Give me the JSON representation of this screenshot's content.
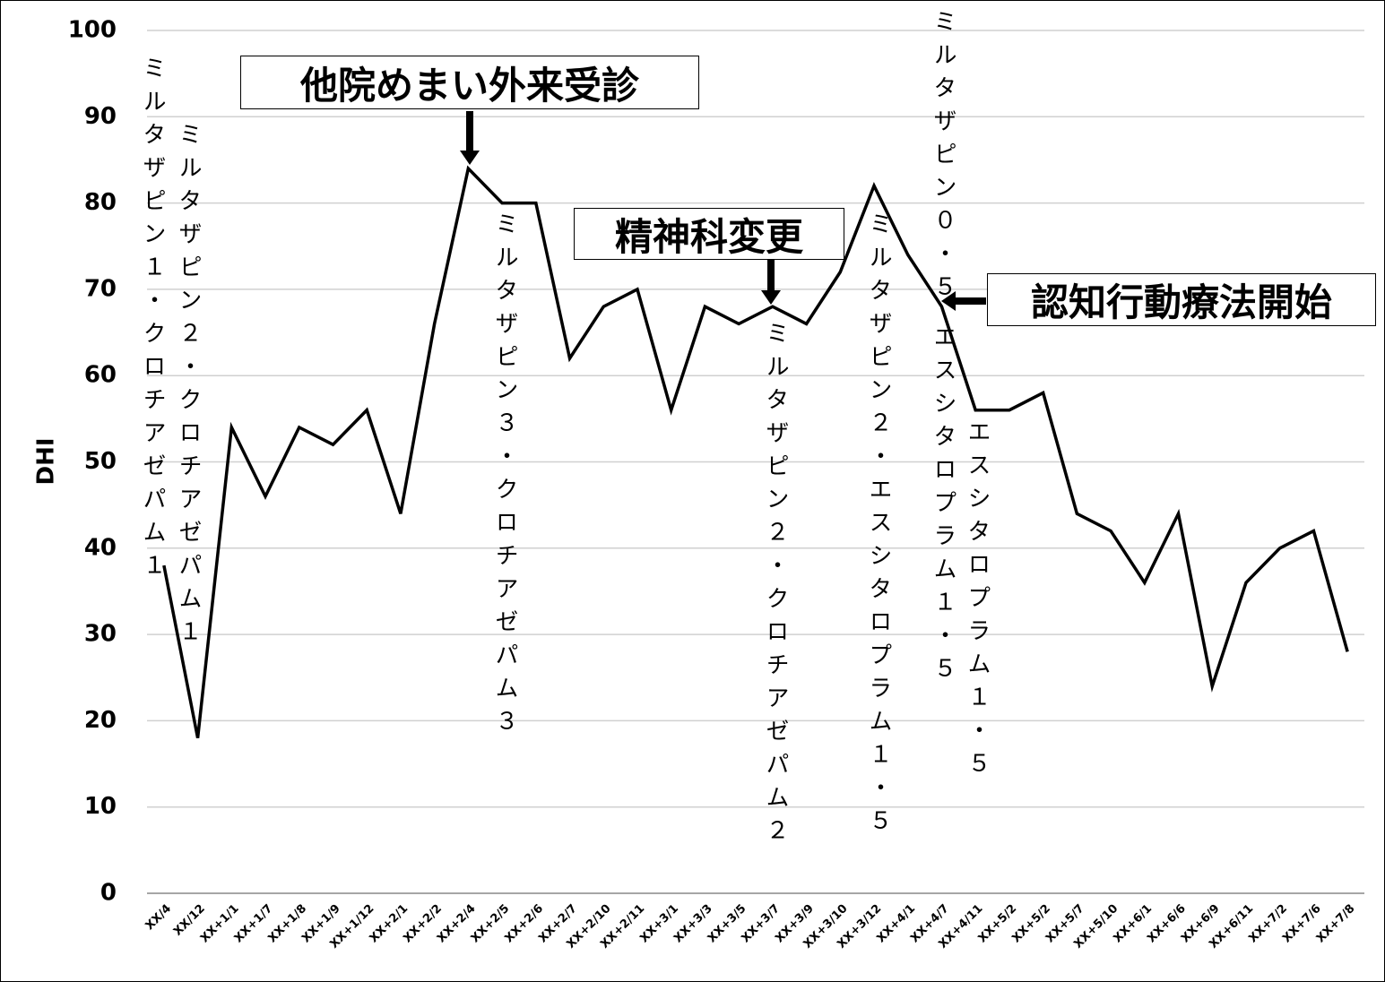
{
  "chart_data": {
    "type": "line",
    "y_label": "DHI",
    "categories": [
      "XX/4",
      "XX/12",
      "XX+1/1",
      "XX+1/7",
      "XX+1/8",
      "XX+1/9",
      "XX+1/12",
      "XX+2/1",
      "XX+2/2",
      "XX+2/4",
      "XX+2/5",
      "XX+2/6",
      "XX+2/7",
      "XX+2/10",
      "XX+2/11",
      "XX+3/1",
      "XX+3/3",
      "XX+3/5",
      "XX+3/7",
      "XX+3/9",
      "XX+3/10",
      "XX+3/12",
      "XX+4/1",
      "XX+4/7",
      "XX+4/11",
      "XX+5/2",
      "XX+5/2",
      "XX+5/7",
      "XX+5/10",
      "XX+6/1",
      "XX+6/6",
      "XX+6/9",
      "XX+6/11",
      "XX+7/2",
      "XX+7/6",
      "XX+7/8"
    ],
    "values": [
      38,
      18,
      54,
      46,
      54,
      52,
      56,
      44,
      66,
      84,
      80,
      80,
      62,
      68,
      70,
      56,
      68,
      66,
      68,
      66,
      72,
      82,
      74,
      68,
      56,
      56,
      58,
      44,
      42,
      36,
      44,
      24,
      36,
      40,
      42,
      28
    ],
    "color": "#000000",
    "ylim": [
      0,
      100
    ],
    "yticks": [
      0,
      10,
      20,
      30,
      40,
      50,
      60,
      70,
      80,
      90,
      100
    ],
    "grid": true,
    "annotations": [
      "ミルタザピン１・クロチアゼパム１",
      "ミルタザピン２・クロチアゼパム１",
      "ミルタザピン３・クロチアゼパム３",
      "ミルタザピン２・クロチアゼパム２",
      "ミルタザピン２・エスシタロプラム１・５",
      "ミルタザピン０・５",
      "エスシタロプラム１・５",
      "エスシタロプラム１・５"
    ],
    "callouts": [
      "他院めまい外来受診",
      "精神科変更",
      "認知行動療法開始"
    ]
  }
}
